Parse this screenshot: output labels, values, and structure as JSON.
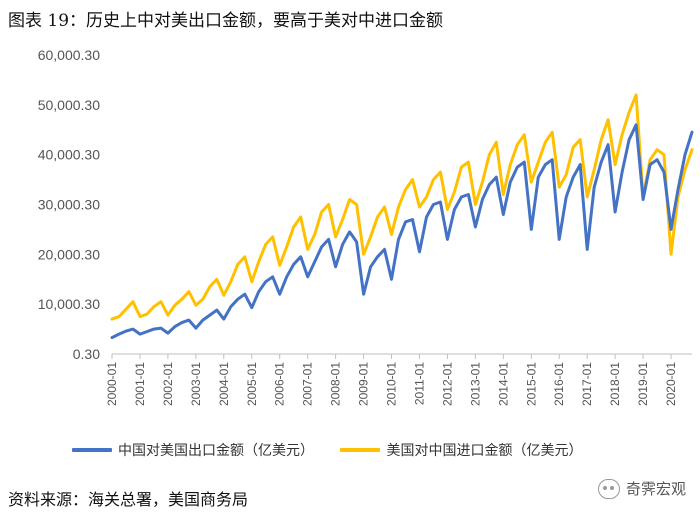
{
  "title": "图表 19：历史上中对美出口金额，要高于美对中进口金额",
  "source": "资料来源：海关总署，美国商务局",
  "watermark": "奇霁宏观",
  "colors": {
    "china_export": "#4472C4",
    "us_import": "#FFC000",
    "axis": "#bfbfbf",
    "text": "#555555"
  },
  "chart_data": {
    "type": "line",
    "title": "",
    "xlabel": "",
    "ylabel": "",
    "ylim": [
      0.3,
      60000.3
    ],
    "yticks": [
      0.3,
      10000.3,
      20000.3,
      30000.3,
      40000.3,
      50000.3,
      60000.3
    ],
    "ytick_labels": [
      "0.30",
      "10,000.30",
      "20,000.30",
      "30,000.30",
      "40,000.30",
      "50,000.30",
      "60,000.30"
    ],
    "x_range": [
      2000.0,
      2020.75
    ],
    "x_ticks": [
      2000,
      2001,
      2002,
      2003,
      2004,
      2005,
      2006,
      2007,
      2008,
      2009,
      2010,
      2011,
      2012,
      2013,
      2014,
      2015,
      2016,
      2017,
      2018,
      2019,
      2020
    ],
    "x_tick_labels": [
      "2000-01",
      "2001-01",
      "2002-01",
      "2003-01",
      "2004-01",
      "2005-01",
      "2006-01",
      "2007-01",
      "2008-01",
      "2009-01",
      "2010-01",
      "2011-01",
      "2012-01",
      "2013-01",
      "2014-01",
      "2015-01",
      "2016-01",
      "2017-01",
      "2018-01",
      "2019-01",
      "2020-01"
    ],
    "legend_position": "bottom",
    "series": [
      {
        "name": "中国对美国出口金额（亿美元）",
        "color": "#4472C4",
        "x": [
          2000.0,
          2000.25,
          2000.5,
          2000.75,
          2001.0,
          2001.25,
          2001.5,
          2001.75,
          2002.0,
          2002.25,
          2002.5,
          2002.75,
          2003.0,
          2003.25,
          2003.5,
          2003.75,
          2004.0,
          2004.25,
          2004.5,
          2004.75,
          2005.0,
          2005.25,
          2005.5,
          2005.75,
          2006.0,
          2006.25,
          2006.5,
          2006.75,
          2007.0,
          2007.25,
          2007.5,
          2007.75,
          2008.0,
          2008.25,
          2008.5,
          2008.75,
          2009.0,
          2009.25,
          2009.5,
          2009.75,
          2010.0,
          2010.25,
          2010.5,
          2010.75,
          2011.0,
          2011.25,
          2011.5,
          2011.75,
          2012.0,
          2012.25,
          2012.5,
          2012.75,
          2013.0,
          2013.25,
          2013.5,
          2013.75,
          2014.0,
          2014.25,
          2014.5,
          2014.75,
          2015.0,
          2015.25,
          2015.5,
          2015.75,
          2016.0,
          2016.25,
          2016.5,
          2016.75,
          2017.0,
          2017.25,
          2017.5,
          2017.75,
          2018.0,
          2018.25,
          2018.5,
          2018.75,
          2019.0,
          2019.25,
          2019.5,
          2019.75,
          2020.0,
          2020.25,
          2020.5,
          2020.75
        ],
        "values": [
          3300,
          4000,
          4600,
          5000,
          4000,
          4500,
          5000,
          5200,
          4200,
          5500,
          6300,
          6800,
          5200,
          6800,
          7800,
          8800,
          7000,
          9500,
          11000,
          12000,
          9300,
          12500,
          14500,
          15500,
          12000,
          15500,
          18000,
          19500,
          15500,
          18500,
          21500,
          23000,
          17500,
          22000,
          24500,
          22500,
          12000,
          17500,
          19500,
          21000,
          15000,
          23000,
          26500,
          27000,
          20500,
          27500,
          30000,
          30500,
          23000,
          29000,
          31500,
          32000,
          25500,
          31000,
          34000,
          35500,
          28000,
          34500,
          37500,
          38500,
          25000,
          35500,
          38000,
          39000,
          23000,
          31500,
          35500,
          38000,
          21000,
          33500,
          38500,
          42000,
          28500,
          36500,
          43000,
          46000,
          31000,
          38000,
          39000,
          36500,
          25000,
          33000,
          40000,
          44500
        ]
      },
      {
        "name": "美国对中国进口金额（亿美元）",
        "color": "#FFC000",
        "x": [
          2000.0,
          2000.25,
          2000.5,
          2000.75,
          2001.0,
          2001.25,
          2001.5,
          2001.75,
          2002.0,
          2002.25,
          2002.5,
          2002.75,
          2003.0,
          2003.25,
          2003.5,
          2003.75,
          2004.0,
          2004.25,
          2004.5,
          2004.75,
          2005.0,
          2005.25,
          2005.5,
          2005.75,
          2006.0,
          2006.25,
          2006.5,
          2006.75,
          2007.0,
          2007.25,
          2007.5,
          2007.75,
          2008.0,
          2008.25,
          2008.5,
          2008.75,
          2009.0,
          2009.25,
          2009.5,
          2009.75,
          2010.0,
          2010.25,
          2010.5,
          2010.75,
          2011.0,
          2011.25,
          2011.5,
          2011.75,
          2012.0,
          2012.25,
          2012.5,
          2012.75,
          2013.0,
          2013.25,
          2013.5,
          2013.75,
          2014.0,
          2014.25,
          2014.5,
          2014.75,
          2015.0,
          2015.25,
          2015.5,
          2015.75,
          2016.0,
          2016.25,
          2016.5,
          2016.75,
          2017.0,
          2017.25,
          2017.5,
          2017.75,
          2018.0,
          2018.25,
          2018.5,
          2018.75,
          2019.0,
          2019.25,
          2019.5,
          2019.75,
          2020.0,
          2020.25,
          2020.5,
          2020.75
        ],
        "values": [
          7000,
          7500,
          9000,
          10500,
          7500,
          8000,
          9500,
          10500,
          7800,
          9800,
          11000,
          12500,
          9800,
          11000,
          13500,
          15000,
          11800,
          14500,
          18000,
          19500,
          14500,
          18500,
          22000,
          23500,
          17800,
          21500,
          25500,
          27500,
          21000,
          24000,
          28500,
          30000,
          23500,
          27000,
          31000,
          30000,
          20000,
          23500,
          27500,
          29500,
          24000,
          29500,
          33000,
          35000,
          29500,
          31500,
          35000,
          36500,
          29000,
          32500,
          37500,
          38500,
          30000,
          34500,
          40000,
          42500,
          32000,
          38000,
          42000,
          44000,
          34500,
          38500,
          42500,
          44500,
          33500,
          36000,
          41500,
          43000,
          31500,
          37000,
          43000,
          47000,
          38000,
          44000,
          48500,
          52000,
          31500,
          39000,
          41000,
          40000,
          20000,
          31500,
          37000,
          41000
        ]
      }
    ]
  }
}
